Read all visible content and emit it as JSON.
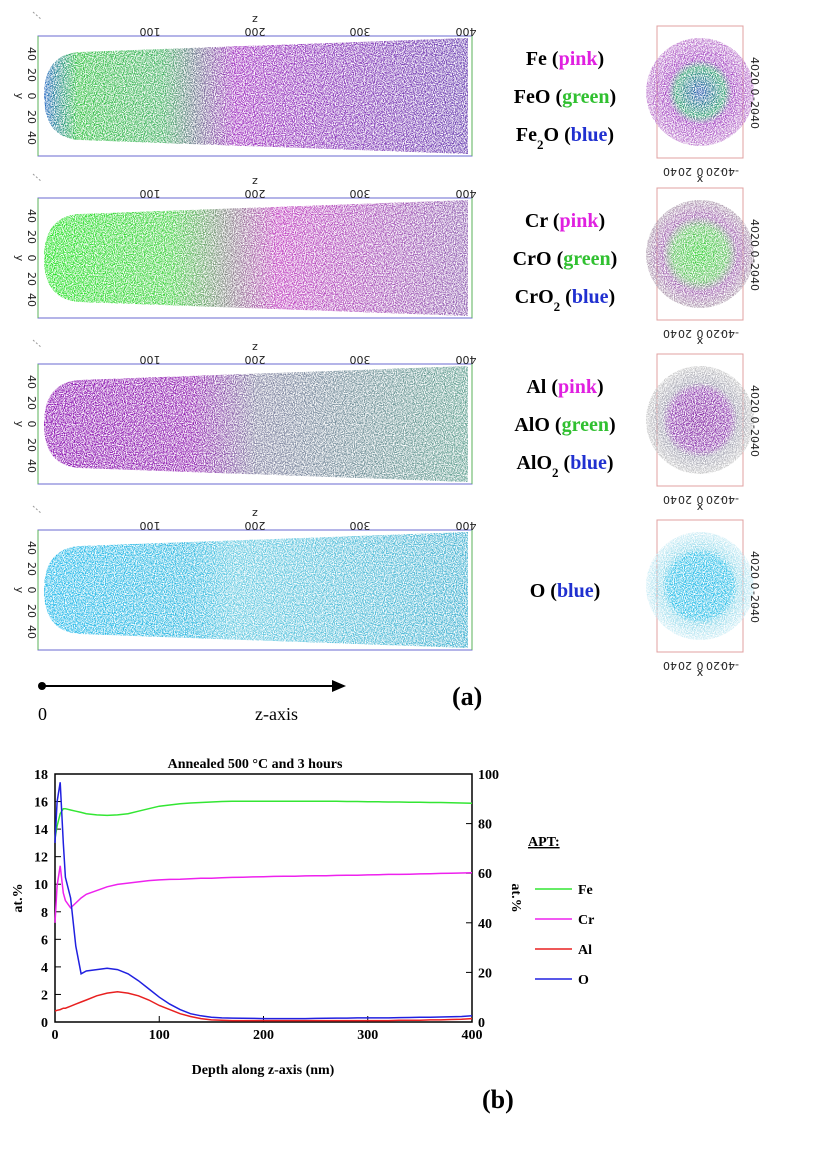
{
  "panel_a": {
    "label": "(a)",
    "arrow_start": "0",
    "arrow_label": "z-axis",
    "recon_axes": {
      "z_title": "z",
      "z_ticks": [
        "100",
        "200",
        "300",
        "400"
      ],
      "y_title": "y",
      "y_ticks": [
        "40",
        "20",
        "0",
        "20",
        "40"
      ]
    },
    "section_axes": {
      "x_title": "x",
      "x_ticks": [
        "40",
        "20",
        "0",
        "-20",
        "-40"
      ],
      "y_ticks": [
        "40",
        "20",
        "0",
        "-20",
        "-40"
      ]
    },
    "rows": [
      {
        "species": [
          [
            {
              "t": "Fe"
            },
            {
              "t": " ("
            },
            {
              "t": "pink",
              "color": "#e020e0"
            },
            {
              "t": ")"
            }
          ],
          [
            {
              "t": "FeO"
            },
            {
              "t": " ("
            },
            {
              "t": "green",
              "color": "#30c030"
            },
            {
              "t": ")"
            }
          ],
          [
            {
              "t": "Fe"
            },
            {
              "t": "2",
              "sub": true
            },
            {
              "t": "O"
            },
            {
              "t": " ("
            },
            {
              "t": "blue",
              "color": "#2030d0"
            },
            {
              "t": ")"
            }
          ]
        ]
      },
      {
        "species": [
          [
            {
              "t": "Cr"
            },
            {
              "t": " ("
            },
            {
              "t": "pink",
              "color": "#e020e0"
            },
            {
              "t": ")"
            }
          ],
          [
            {
              "t": "CrO"
            },
            {
              "t": " ("
            },
            {
              "t": "green",
              "color": "#30c030"
            },
            {
              "t": ")"
            }
          ],
          [
            {
              "t": "CrO"
            },
            {
              "t": "2",
              "sub": true
            },
            {
              "t": " ("
            },
            {
              "t": "blue",
              "color": "#2030d0"
            },
            {
              "t": ")"
            }
          ]
        ]
      },
      {
        "species": [
          [
            {
              "t": "Al"
            },
            {
              "t": " ("
            },
            {
              "t": "pink",
              "color": "#e020e0"
            },
            {
              "t": ")"
            }
          ],
          [
            {
              "t": "AlO"
            },
            {
              "t": " ("
            },
            {
              "t": "green",
              "color": "#30c030"
            },
            {
              "t": ")"
            }
          ],
          [
            {
              "t": "AlO"
            },
            {
              "t": "2",
              "sub": true
            },
            {
              "t": " ("
            },
            {
              "t": "blue",
              "color": "#2030d0"
            },
            {
              "t": ")"
            }
          ]
        ]
      },
      {
        "species": [
          [
            {
              "t": "O"
            },
            {
              "t": " ("
            },
            {
              "t": "blue",
              "color": "#2030d0"
            },
            {
              "t": ")"
            }
          ]
        ]
      }
    ]
  },
  "chart_data": {
    "type": "line",
    "label": "(b)",
    "title": "Annealed 500 °C and 3 hours",
    "xlabel": "Depth along z-axis (nm)",
    "ylabel": "at.%",
    "y2label": "at.%",
    "legend_title": "APT:",
    "xlim": [
      0,
      400
    ],
    "xticks": [
      0,
      100,
      200,
      300,
      400
    ],
    "ylim": [
      0,
      18
    ],
    "yticks": [
      0,
      2,
      4,
      6,
      8,
      10,
      12,
      14,
      16,
      18
    ],
    "y2lim": [
      0,
      100
    ],
    "y2ticks": [
      0,
      20,
      40,
      60,
      80,
      100
    ],
    "x": [
      0,
      2,
      5,
      8,
      10,
      15,
      20,
      25,
      30,
      40,
      50,
      60,
      70,
      80,
      90,
      100,
      110,
      120,
      130,
      140,
      150,
      160,
      170,
      180,
      190,
      200,
      210,
      220,
      230,
      240,
      250,
      260,
      270,
      280,
      290,
      300,
      310,
      320,
      330,
      340,
      350,
      360,
      370,
      380,
      390,
      400
    ],
    "series": [
      {
        "name": "Fe",
        "color": "#33e633",
        "axis": "y2",
        "values": [
          74,
          79,
          84,
          86,
          86,
          85.5,
          85,
          84.5,
          84,
          83.5,
          83.3,
          83.5,
          84,
          85,
          86,
          87,
          87.5,
          88,
          88.3,
          88.5,
          88.7,
          88.9,
          89,
          89,
          89,
          89,
          89,
          89,
          89,
          89,
          89,
          89,
          89,
          88.9,
          88.9,
          88.8,
          88.8,
          88.7,
          88.7,
          88.6,
          88.6,
          88.5,
          88.5,
          88.4,
          88.3,
          88.2
        ]
      },
      {
        "name": "Cr",
        "color": "#ee22ee",
        "axis": "y2",
        "values": [
          40,
          55,
          63,
          52,
          49,
          46,
          48,
          50,
          51.5,
          53,
          54.5,
          55.5,
          56,
          56.5,
          57,
          57.3,
          57.5,
          57.6,
          57.8,
          58,
          58,
          58.2,
          58.3,
          58.4,
          58.5,
          58.6,
          58.7,
          58.8,
          58.8,
          58.9,
          59,
          59,
          59.1,
          59.2,
          59.2,
          59.3,
          59.4,
          59.5,
          59.5,
          59.6,
          59.7,
          59.8,
          59.9,
          60,
          60.1,
          60.2
        ]
      },
      {
        "name": "Al",
        "color": "#e82020",
        "values": [
          0.8,
          0.85,
          0.9,
          1.0,
          1.0,
          1.15,
          1.3,
          1.45,
          1.6,
          1.9,
          2.1,
          2.2,
          2.1,
          1.9,
          1.6,
          1.2,
          0.9,
          0.6,
          0.4,
          0.25,
          0.15,
          0.12,
          0.1,
          0.1,
          0.1,
          0.1,
          0.1,
          0.1,
          0.1,
          0.1,
          0.1,
          0.1,
          0.1,
          0.1,
          0.1,
          0.1,
          0.1,
          0.1,
          0.12,
          0.12,
          0.12,
          0.15,
          0.15,
          0.18,
          0.2,
          0.25
        ]
      },
      {
        "name": "O",
        "color": "#2020e0",
        "values": [
          13,
          16,
          17.4,
          13,
          10.5,
          9,
          5.5,
          3.5,
          3.7,
          3.8,
          3.9,
          3.8,
          3.5,
          3.0,
          2.4,
          1.8,
          1.3,
          0.9,
          0.6,
          0.45,
          0.35,
          0.3,
          0.28,
          0.27,
          0.26,
          0.25,
          0.25,
          0.25,
          0.25,
          0.25,
          0.26,
          0.27,
          0.28,
          0.28,
          0.3,
          0.3,
          0.3,
          0.3,
          0.32,
          0.33,
          0.34,
          0.35,
          0.36,
          0.38,
          0.4,
          0.45
        ]
      }
    ]
  }
}
